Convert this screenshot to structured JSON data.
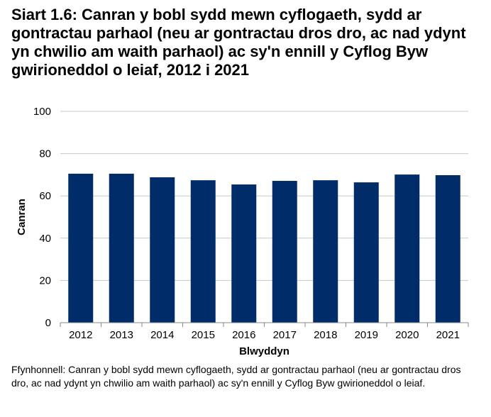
{
  "chart_data": {
    "type": "bar",
    "title": "Siart 1.6: Canran y bobl sydd mewn cyflogaeth, sydd ar gontractau parhaol (neu ar gontractau dros dro, ac nad ydynt yn chwilio am waith parhaol) ac sy'n ennill y Cyflog Byw gwirioneddol o leiaf, 2012 i 2021",
    "categories": [
      "2012",
      "2013",
      "2014",
      "2015",
      "2016",
      "2017",
      "2018",
      "2019",
      "2020",
      "2021"
    ],
    "values": [
      70.5,
      70.5,
      68.8,
      67.4,
      65.4,
      67.1,
      67.4,
      66.4,
      70.1,
      69.8
    ],
    "xlabel": "Blwyddyn",
    "ylabel": "Canran",
    "ylim": [
      0,
      100
    ],
    "yticks": [
      0,
      20,
      40,
      60,
      80,
      100
    ],
    "grid": true,
    "bar_color": "#002D6A",
    "source": "Ffynhonnell: Canran y bobl sydd mewn cyflogaeth, sydd ar gontractau parhaol (neu ar gontractau dros dro, ac nad ydynt yn chwilio am waith parhaol) ac sy'n ennill y Cyflog Byw gwirioneddol o leiaf."
  }
}
